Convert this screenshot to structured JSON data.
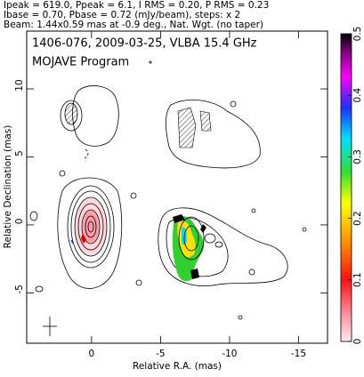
{
  "chart_data": {
    "type": "contour",
    "header": [
      "Ipeak = 619.0, Ppeak = 6.1, I RMS = 0.20, P RMS = 0.23",
      "Ibase = 0.70, Pbase = 0.72 (mJy/beam), steps: x 2",
      "Beam: 1.44x0.59 mas at -0.9 deg., Nat. Wgt. (no taper)"
    ],
    "title": "1406-076, 2009-03-25, VLBA 15.4 GHz",
    "subtitle": "MOJAVE Program",
    "x_label": "Relative R.A. (mas)",
    "y_label": "Relative Declination (mas)",
    "xlim": [
      4.7,
      -17.1
    ],
    "xticks": [
      0,
      -5,
      -10,
      -15
    ],
    "ylim": [
      -8.7,
      14.25
    ],
    "yticks": [
      -5,
      0,
      5,
      10
    ],
    "clim": [
      0,
      0.5
    ],
    "cticks": [
      0,
      0.1,
      0.2,
      0.3,
      0.4,
      0.5
    ]
  }
}
